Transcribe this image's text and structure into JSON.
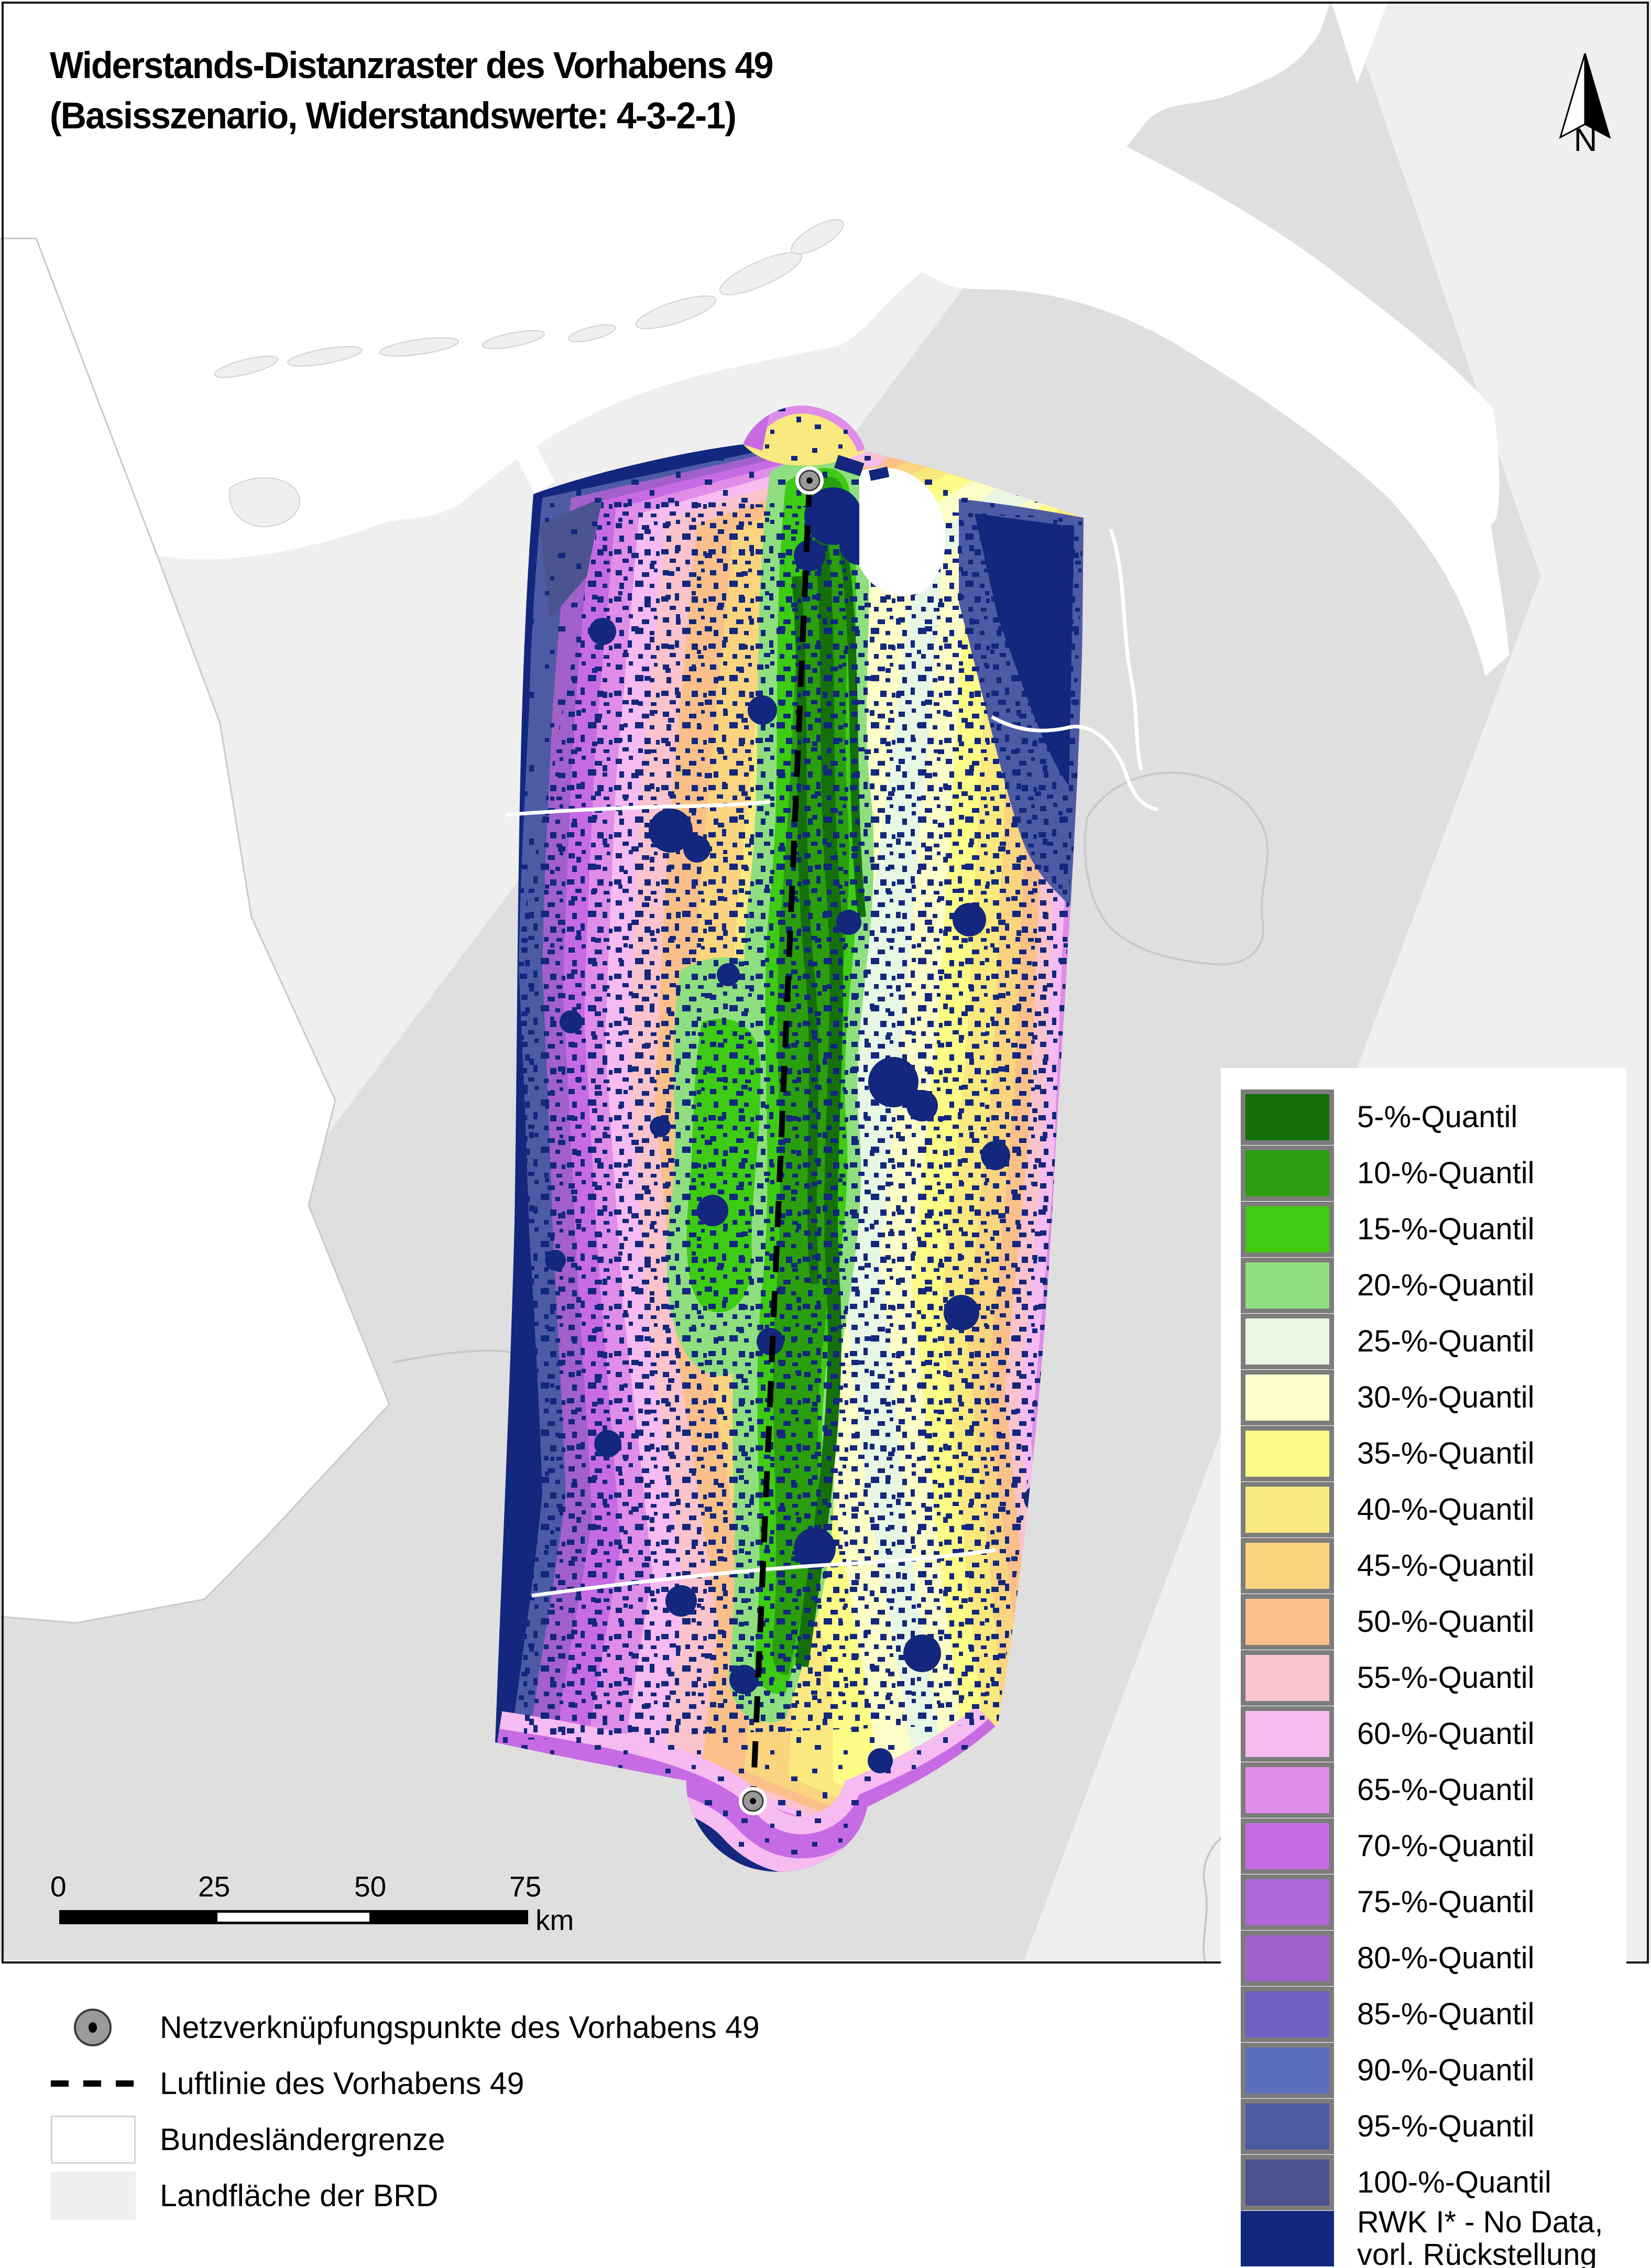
{
  "title": {
    "line1": "Widerstands-Distanzraster des Vorhabens 49",
    "line2": "(Basisszenario, Widerstandswerte: 4-3-2-1)"
  },
  "north_arrow": {
    "label": "N"
  },
  "quantile_legend": {
    "items": [
      {
        "label": "5-%-Quantil",
        "color": "#157009",
        "border": true
      },
      {
        "label": "10-%-Quantil",
        "color": "#2c9e10",
        "border": true
      },
      {
        "label": "15-%-Quantil",
        "color": "#40cb12",
        "border": true
      },
      {
        "label": "20-%-Quantil",
        "color": "#8fdf80",
        "border": true
      },
      {
        "label": "25-%-Quantil",
        "color": "#e8f7e3",
        "border": true
      },
      {
        "label": "30-%-Quantil",
        "color": "#fdfdc8",
        "border": true
      },
      {
        "label": "35-%-Quantil",
        "color": "#fdfc86",
        "border": true
      },
      {
        "label": "40-%-Quantil",
        "color": "#fae97e",
        "border": true
      },
      {
        "label": "45-%-Quantil",
        "color": "#fad47f",
        "border": true
      },
      {
        "label": "50-%-Quantil",
        "color": "#fbc08a",
        "border": true
      },
      {
        "label": "55-%-Quantil",
        "color": "#fbc3cc",
        "border": true
      },
      {
        "label": "60-%-Quantil",
        "color": "#f6bbf0",
        "border": true
      },
      {
        "label": "65-%-Quantil",
        "color": "#df8de9",
        "border": true
      },
      {
        "label": "70-%-Quantil",
        "color": "#c76be4",
        "border": true
      },
      {
        "label": "75-%-Quantil",
        "color": "#b067d8",
        "border": true
      },
      {
        "label": "80-%-Quantil",
        "color": "#a160ca",
        "border": true
      },
      {
        "label": "85-%-Quantil",
        "color": "#6e60c4",
        "border": true
      },
      {
        "label": "90-%-Quantil",
        "color": "#5b70ba",
        "border": true
      },
      {
        "label": "95-%-Quantil",
        "color": "#4d5ba5",
        "border": true
      },
      {
        "label": "100-%-Quantil",
        "color": "#4b548e",
        "border": true
      },
      {
        "label": "RWK I* - No Data,\nvorl. Rückstellung",
        "color": "#12277d",
        "border": false
      }
    ]
  },
  "map_legend": {
    "items": [
      {
        "icon": "network-point",
        "label": "Netzverknüpfungspunkte des Vorhabens 49"
      },
      {
        "icon": "dashed-line",
        "label": "Luftlinie des Vorhabens 49"
      },
      {
        "icon": "white-box",
        "label": "Bundesländergrenze"
      },
      {
        "icon": "gray-box",
        "label": "Landfläche der BRD"
      }
    ]
  },
  "scale_bar": {
    "ticks": [
      "0",
      "25",
      "50",
      "75"
    ],
    "unit": "km"
  },
  "colors": {
    "land": "#efefef",
    "study_band": "#dfdfdf",
    "sea": "#ffffff",
    "no_data_navy": "#12277d",
    "frame": "#1a1a1a"
  }
}
